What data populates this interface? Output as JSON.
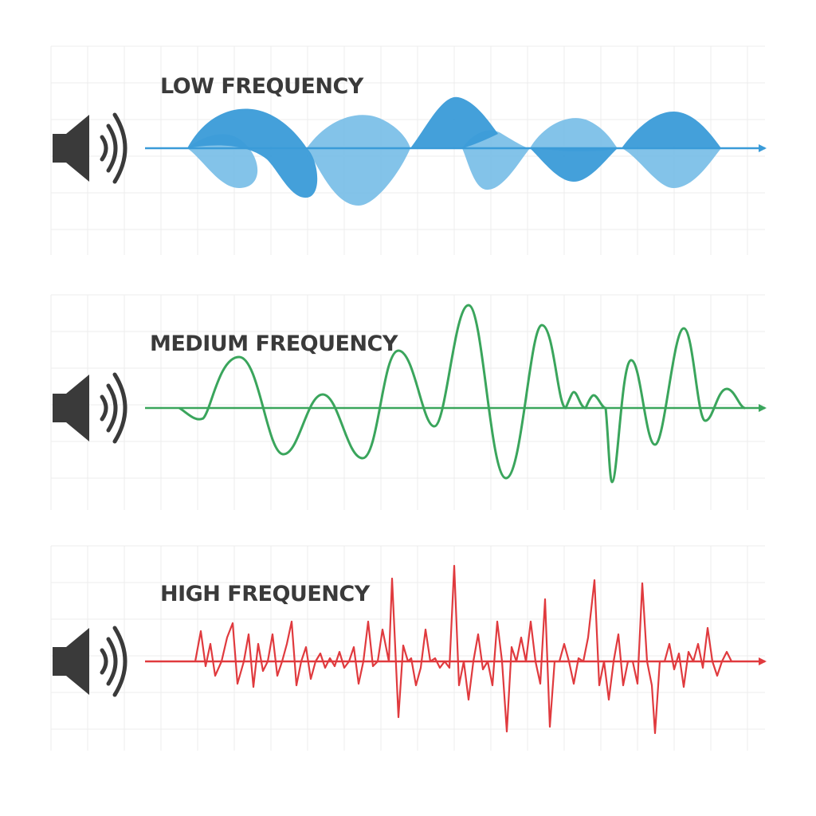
{
  "panels": [
    {
      "id": "low",
      "label": "LOW FREQUENCY",
      "color": "#3a9bd8",
      "color_light": "#7cc0e8",
      "icon": "speaker-icon"
    },
    {
      "id": "medium",
      "label": "MEDIUM FREQUENCY",
      "color": "#3aa55c",
      "icon": "speaker-icon"
    },
    {
      "id": "high",
      "label": "HIGH FREQUENCY",
      "color": "#e03a3e",
      "icon": "speaker-icon"
    }
  ],
  "colors": {
    "grid": "#ececec",
    "speaker": "#3a3a3a"
  }
}
